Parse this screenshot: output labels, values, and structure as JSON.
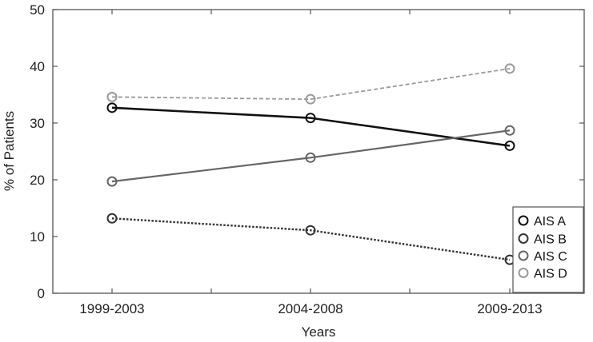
{
  "chart_data": {
    "type": "line",
    "title": "",
    "xlabel": "Years",
    "ylabel": "% of Patients",
    "categories": [
      "1999-2003",
      "2004-2008",
      "2009-2013"
    ],
    "ylim": [
      0,
      50
    ],
    "yticks": [
      "0",
      "10",
      "20",
      "30",
      "40",
      "50"
    ],
    "grid": false,
    "legend_position": "bottom-right",
    "series": [
      {
        "name": "AIS A",
        "values": [
          32.7,
          30.9,
          26.0
        ],
        "color": "#111111",
        "dash": "solid"
      },
      {
        "name": "AIS B",
        "values": [
          13.2,
          11.1,
          5.9
        ],
        "color": "#333333",
        "dash": "dotted"
      },
      {
        "name": "AIS C",
        "values": [
          19.7,
          23.9,
          28.7
        ],
        "color": "#666666",
        "dash": "solid"
      },
      {
        "name": "AIS D",
        "values": [
          34.6,
          34.2,
          39.6
        ],
        "color": "#9a9a9a",
        "dash": "dashed"
      }
    ]
  }
}
